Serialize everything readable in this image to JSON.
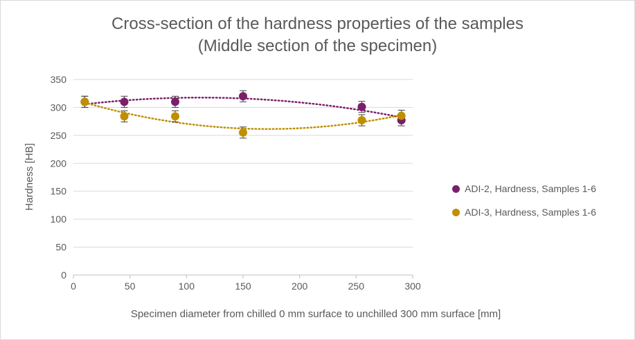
{
  "chart_data": {
    "type": "scatter",
    "title_lines": [
      "Cross-section of the hardness properties of the samples",
      "(Middle section of the specimen)"
    ],
    "xlabel": "Specimen diameter from chilled 0 mm surface to unchilled 300 mm surface  [mm]",
    "ylabel": "Hardness [HB]",
    "xlim": [
      0,
      300
    ],
    "ylim": [
      0,
      350
    ],
    "xticks": [
      "0",
      "50",
      "100",
      "150",
      "200",
      "250",
      "300"
    ],
    "yticks": [
      "0",
      "50",
      "100",
      "150",
      "200",
      "250",
      "300",
      "350"
    ],
    "grid": "horizontal",
    "legend_position": "right",
    "trendline": "polynomial, dotted",
    "series": [
      {
        "name": "ADI-2, Hardness, Samples 1-6",
        "color": "#7b1f6a",
        "x": [
          10,
          45,
          90,
          150,
          255,
          290
        ],
        "y": [
          310,
          310,
          310,
          320,
          301,
          277
        ],
        "error": [
          10,
          10,
          10,
          10,
          10,
          10
        ]
      },
      {
        "name": "ADI-3, Hardness, Samples 1-6",
        "color": "#bf8f00",
        "x": [
          10,
          45,
          90,
          150,
          255,
          290
        ],
        "y": [
          310,
          284,
          284,
          255,
          277,
          285
        ],
        "error": [
          10,
          10,
          10,
          10,
          10,
          10
        ]
      }
    ]
  }
}
